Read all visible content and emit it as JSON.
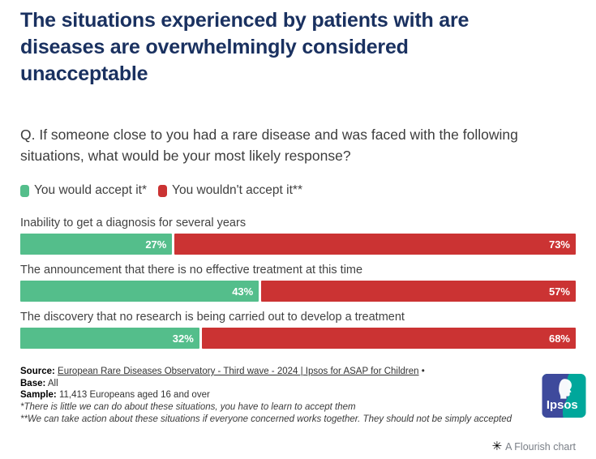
{
  "header": {
    "title_lines": [
      "The situations experienced by patients with are",
      "diseases are overwhelmingly considered",
      "unacceptable"
    ],
    "question": "Q. If someone close to you had a rare disease and was faced with the following situations, what would be your most likely response?"
  },
  "chart_data": {
    "type": "bar",
    "orientation": "horizontal",
    "stacked": true,
    "grid": false,
    "legend_position": "top",
    "value_suffix": "%",
    "xlim": [
      0,
      100
    ],
    "categories": [
      "Inability to get a diagnosis for several years",
      "The announcement that there is no effective treatment at this time",
      "The discovery that no research is being carried out to develop a treatment"
    ],
    "series": [
      {
        "name": "You would accept it*",
        "color": "#54be8b",
        "values": [
          27,
          43,
          32
        ]
      },
      {
        "name": "You wouldn't accept it**",
        "color": "#cb3333",
        "values": [
          73,
          57,
          68
        ]
      }
    ]
  },
  "footer": {
    "source_label": "Source:",
    "source_link": "European Rare Diseases Observatory - Third wave - 2024 | Ipsos for ASAP for Children",
    "source_bullet": "•",
    "base_label": "Base:",
    "base_value": "All",
    "sample_label": "Sample:",
    "sample_value": "11,413 Europeans aged 16 and over",
    "footnote_1": "*There is little we can do about these situations, you have to learn to accept them",
    "footnote_2": "**We can take action about these situations if everyone concerned works together. They should not be simply accepted"
  },
  "branding": {
    "ipsos_wordmark": "Ipsos",
    "flourish_label": "A Flourish chart",
    "flourish_icon_glyph": "✳"
  },
  "colors": {
    "title_navy": "#1a3160",
    "accept_green": "#54be8b",
    "reject_red": "#cb3333",
    "body_text": "#3d3d3d",
    "ipsos_teal": "#00a79b",
    "ipsos_blue": "#3e4a9c"
  }
}
